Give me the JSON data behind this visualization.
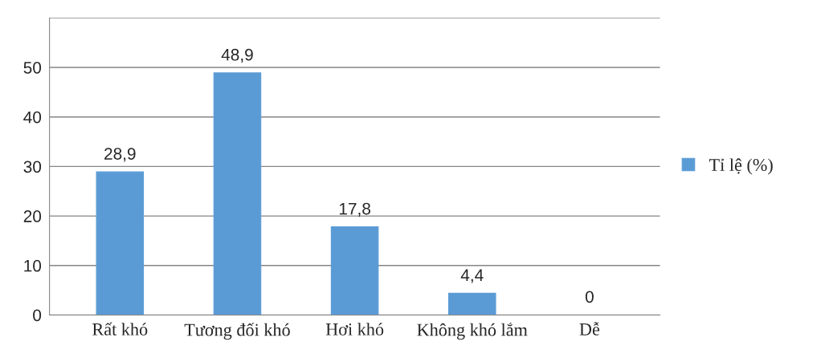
{
  "chart_data": {
    "type": "bar",
    "categories": [
      "Rất khó",
      "Tương đối khó",
      "Hơi khó",
      "Không khó lắm",
      "Dễ"
    ],
    "series": [
      {
        "name": "Tỉ lệ (%)",
        "color": "#5b9bd5",
        "values": [
          28.9,
          48.9,
          17.8,
          4.4,
          0
        ],
        "value_labels": [
          "28,9",
          "48,9",
          "17,8",
          "4,4",
          "0"
        ]
      }
    ],
    "ylim": [
      0,
      60
    ],
    "yticks": [
      0,
      10,
      20,
      30,
      40,
      50,
      {
        "value": 60,
        "label": null
      }
    ],
    "grid": "y",
    "legend": "right"
  }
}
